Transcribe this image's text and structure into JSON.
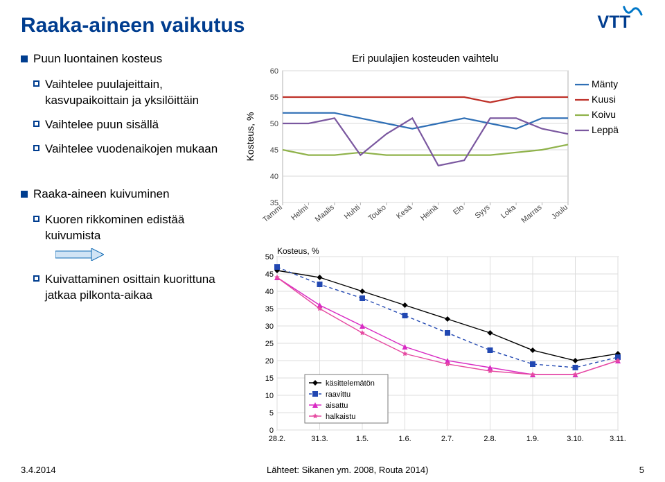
{
  "title": "Raaka-aineen vaikutus",
  "bullets": {
    "a": "Puun luontainen kosteus",
    "a1": "Vaihtelee puulajeittain, kasvupaikoittain ja yksilöittäin",
    "a2": "Vaihtelee puun sisällä",
    "a3": "Vaihtelee vuodenaikojen mukaan",
    "b": "Raaka-aineen kuivuminen",
    "b1": "Kuoren rikkominen edistää kuivumista",
    "b2": "Kuivattaminen osittain kuorittuna jatkaa pilkonta-aikaa"
  },
  "footer": {
    "date": "3.4.2014",
    "source": "Lähteet: Sikanen ym. 2008, Routa 2014)",
    "page": "5"
  },
  "chart1": {
    "type": "line",
    "title": "Eri puulajien kosteuden vaihtelu",
    "title_fontsize": 15,
    "ylabel": "Kosteus, %",
    "label_fontsize": 14,
    "x_categories": [
      "Tammi",
      "Helmi",
      "Maalis",
      "Huhti",
      "Touko",
      "Kesä",
      "Heinä",
      "Elo",
      "Syys",
      "Loka",
      "Marras",
      "Joulu"
    ],
    "ylim": [
      35,
      60
    ],
    "ytick_step": 5,
    "background_color": "#ffffff",
    "grid_color": "#d9d9d9",
    "axis_color": "#b0b0b0",
    "line_width": 2.2,
    "tick_fontsize": 11,
    "series": [
      {
        "name": "Mänty",
        "color": "#2f6fb5",
        "values": [
          52,
          52,
          52,
          51,
          50,
          49,
          50,
          51,
          50,
          49,
          51,
          51
        ]
      },
      {
        "name": "Kuusi",
        "color": "#be3028",
        "values": [
          55,
          55,
          55,
          55,
          55,
          55,
          55,
          55,
          54,
          55,
          55,
          55
        ]
      },
      {
        "name": "Koivu",
        "color": "#8fb24a",
        "values": [
          45,
          44,
          44,
          44.5,
          44,
          44,
          44,
          44,
          44,
          44.5,
          45,
          46
        ]
      },
      {
        "name": "Leppä",
        "color": "#7a579f",
        "values": [
          50,
          50,
          51,
          44,
          48,
          51,
          42,
          43,
          51,
          51,
          49,
          48
        ]
      }
    ],
    "legend_pos": "right"
  },
  "chart2": {
    "type": "line",
    "ylabel": "Kosteus, %",
    "label_fontsize": 12,
    "x_labels": [
      "28.2.",
      "31.3.",
      "1.5.",
      "1.6.",
      "2.7.",
      "2.8.",
      "1.9.",
      "3.10.",
      "3.11."
    ],
    "ylim": [
      0,
      50
    ],
    "ytick_step": 5,
    "background_color": "#ffffff",
    "grid_color": "#dcdcdc",
    "axis_color": "#7a7a7a",
    "line_width": 1.4,
    "marker_size": 4,
    "tick_fontsize": 11,
    "series": [
      {
        "name": "käsittelemätön",
        "color": "#000000",
        "marker": "diamond",
        "values": [
          46,
          44,
          40,
          36,
          32,
          28,
          23,
          20,
          22
        ]
      },
      {
        "name": "raavittu",
        "color": "#2248b2",
        "marker": "square",
        "dashed": true,
        "values": [
          47,
          42,
          38,
          33,
          28,
          23,
          19,
          18,
          21
        ]
      },
      {
        "name": "aisattu",
        "color": "#d82ac3",
        "marker": "triangle",
        "values": [
          44,
          36,
          30,
          24,
          20,
          18,
          16,
          16,
          20
        ]
      },
      {
        "name": "halkaistu",
        "color": "#e64aa1",
        "marker": "star",
        "values": [
          44,
          35,
          28,
          22,
          19,
          17,
          16,
          16,
          20
        ]
      }
    ],
    "legend_pos": "bottom-left-inset"
  },
  "colors": {
    "title": "#003d8f",
    "text": "#000000"
  }
}
